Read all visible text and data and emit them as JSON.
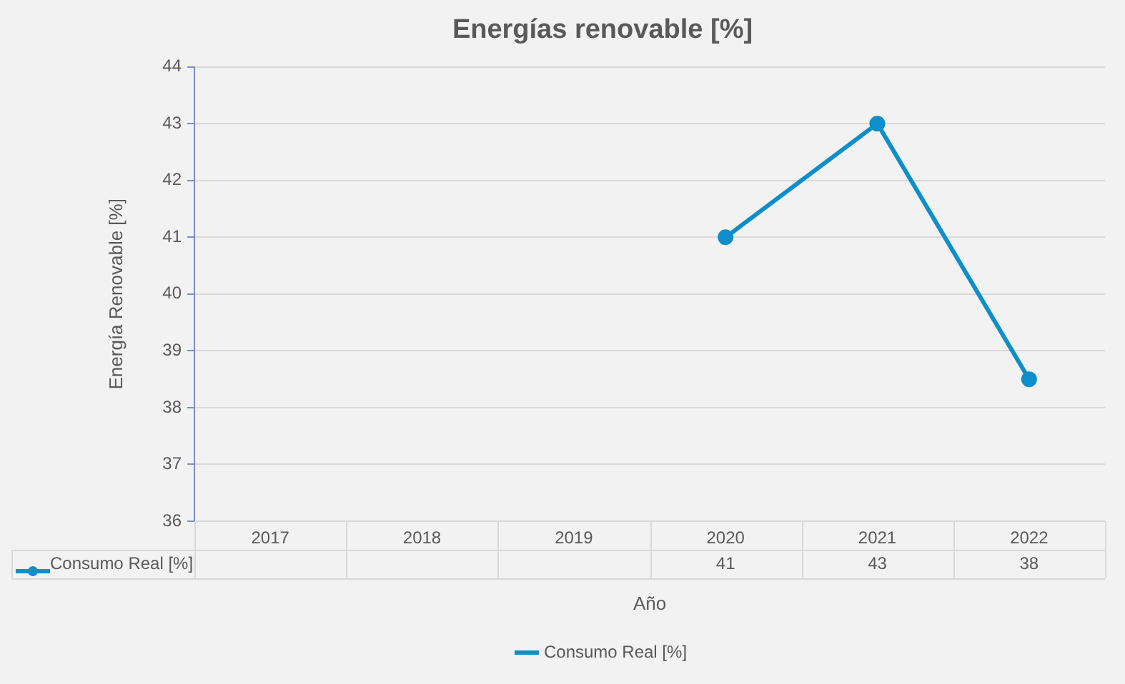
{
  "chart_data": {
    "type": "line",
    "title": "Energías renovable [%]",
    "xlabel": "Año",
    "ylabel": "Energía Renovable [%]",
    "categories": [
      "2017",
      "2018",
      "2019",
      "2020",
      "2021",
      "2022"
    ],
    "series": [
      {
        "name": "Consumo Real [%]",
        "color": "#0e8fc9",
        "values": [
          null,
          null,
          null,
          41,
          43,
          38.5
        ],
        "value_labels": [
          null,
          null,
          null,
          "41",
          "43",
          "38"
        ]
      }
    ],
    "ylim": [
      36,
      44
    ],
    "yticks": [
      36,
      37,
      38,
      39,
      40,
      41,
      42,
      43,
      44
    ],
    "grid": "y",
    "legend": "bottom",
    "marker": "circle",
    "line_style": "solid"
  }
}
